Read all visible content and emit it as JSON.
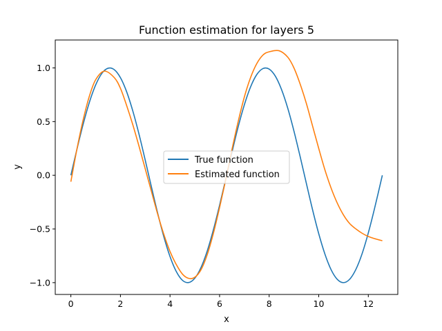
{
  "chart_data": {
    "type": "line",
    "title": "Function estimation for layers 5",
    "xlabel": "x",
    "ylabel": "y",
    "xlim": [
      -0.63,
      13.19
    ],
    "ylim": [
      -1.11,
      1.26
    ],
    "xticks": [
      0,
      2,
      4,
      6,
      8,
      10,
      12
    ],
    "yticks": [
      -1.0,
      -0.5,
      0.0,
      0.5,
      1.0
    ],
    "xtick_labels": [
      "0",
      "2",
      "4",
      "6",
      "8",
      "10",
      "12"
    ],
    "ytick_labels": [
      "−1.0",
      "−0.5",
      "0.0",
      "0.5",
      "1.0"
    ],
    "grid": false,
    "legend_position": "center",
    "series": [
      {
        "name": "True function",
        "color": "#1f77b4",
        "x": [
          0,
          0.25,
          0.5,
          0.75,
          1.0,
          1.25,
          1.5,
          1.75,
          2.0,
          2.25,
          2.5,
          2.75,
          3.0,
          3.25,
          3.5,
          3.75,
          4.0,
          4.25,
          4.5,
          4.75,
          5.0,
          5.25,
          5.5,
          5.75,
          6.0,
          6.25,
          6.5,
          6.75,
          7.0,
          7.25,
          7.5,
          7.75,
          8.0,
          8.25,
          8.5,
          8.75,
          9.0,
          9.25,
          9.5,
          9.75,
          10.0,
          10.25,
          10.5,
          10.75,
          11.0,
          11.25,
          11.5,
          11.75,
          12.0,
          12.25,
          12.566
        ],
        "y": [
          0.0,
          0.247,
          0.479,
          0.682,
          0.841,
          0.949,
          0.997,
          0.984,
          0.909,
          0.778,
          0.598,
          0.382,
          0.141,
          -0.108,
          -0.351,
          -0.572,
          -0.757,
          -0.895,
          -0.978,
          -0.999,
          -0.959,
          -0.859,
          -0.706,
          -0.508,
          -0.279,
          -0.033,
          0.215,
          0.451,
          0.657,
          0.823,
          0.938,
          0.994,
          0.989,
          0.923,
          0.798,
          0.625,
          0.412,
          0.174,
          -0.075,
          -0.32,
          -0.544,
          -0.734,
          -0.88,
          -0.97,
          -1.0,
          -0.968,
          -0.876,
          -0.73,
          -0.537,
          -0.311,
          0.0
        ]
      },
      {
        "name": "Estimated function",
        "color": "#ff7f0e",
        "x": [
          0,
          0.25,
          0.5,
          0.75,
          1.0,
          1.35,
          1.75,
          2.0,
          2.25,
          2.5,
          2.75,
          3.0,
          3.25,
          3.5,
          3.75,
          4.0,
          4.25,
          4.5,
          4.75,
          5.0,
          5.25,
          5.5,
          5.75,
          6.0,
          6.25,
          6.5,
          6.75,
          7.0,
          7.25,
          7.5,
          7.75,
          8.0,
          8.4,
          8.75,
          9.0,
          9.25,
          9.5,
          9.75,
          10.0,
          10.25,
          10.5,
          10.75,
          11.0,
          11.25,
          11.5,
          11.75,
          12.0,
          12.25,
          12.566
        ],
        "y": [
          -0.06,
          0.25,
          0.52,
          0.74,
          0.89,
          0.97,
          0.91,
          0.81,
          0.65,
          0.47,
          0.27,
          0.06,
          -0.15,
          -0.36,
          -0.55,
          -0.71,
          -0.83,
          -0.92,
          -0.96,
          -0.95,
          -0.88,
          -0.74,
          -0.54,
          -0.3,
          -0.04,
          0.24,
          0.5,
          0.73,
          0.91,
          1.04,
          1.12,
          1.15,
          1.16,
          1.1,
          1.0,
          0.85,
          0.67,
          0.46,
          0.25,
          0.05,
          -0.12,
          -0.26,
          -0.37,
          -0.45,
          -0.5,
          -0.54,
          -0.57,
          -0.59,
          -0.61
        ]
      }
    ]
  }
}
